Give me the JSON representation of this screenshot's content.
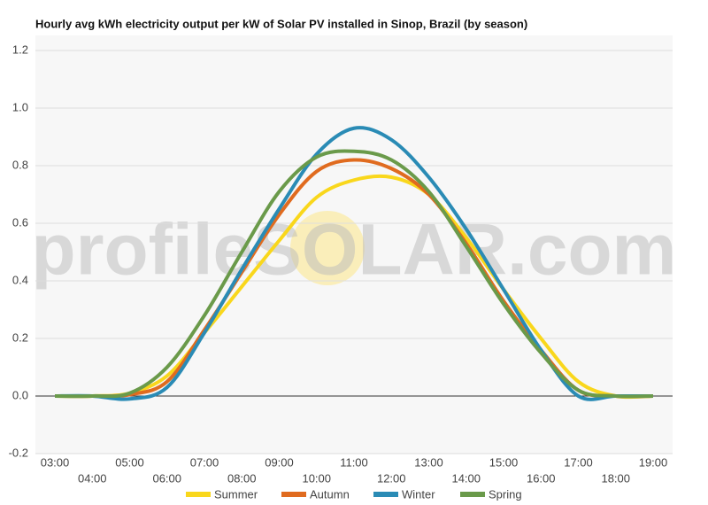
{
  "chart_data": {
    "type": "line",
    "title": "Hourly avg kWh electricity output per kW of Solar PV installed in Sinop, Brazil (by season)",
    "watermark": "profileSOLAR.com",
    "categories": [
      "03:00",
      "04:00",
      "05:00",
      "06:00",
      "07:00",
      "08:00",
      "09:00",
      "10:00",
      "11:00",
      "12:00",
      "13:00",
      "14:00",
      "15:00",
      "16:00",
      "17:00",
      "18:00",
      "19:00"
    ],
    "series": [
      {
        "name": "Summer",
        "color": "#f9d71c",
        "values": [
          0,
          0,
          0.01,
          0.07,
          0.22,
          0.38,
          0.54,
          0.69,
          0.75,
          0.76,
          0.7,
          0.55,
          0.37,
          0.2,
          0.05,
          0,
          0
        ]
      },
      {
        "name": "Autumn",
        "color": "#e06b1f",
        "values": [
          0,
          0,
          0.005,
          0.05,
          0.23,
          0.43,
          0.63,
          0.78,
          0.82,
          0.79,
          0.7,
          0.53,
          0.33,
          0.16,
          0.02,
          0,
          0
        ]
      },
      {
        "name": "Winter",
        "color": "#2a8bb5",
        "values": [
          0,
          0,
          -0.01,
          0.03,
          0.22,
          0.44,
          0.65,
          0.84,
          0.93,
          0.89,
          0.76,
          0.58,
          0.37,
          0.16,
          0,
          0,
          0
        ]
      },
      {
        "name": "Spring",
        "color": "#6a9a4a",
        "values": [
          0,
          0,
          0.01,
          0.1,
          0.28,
          0.5,
          0.71,
          0.83,
          0.85,
          0.82,
          0.71,
          0.52,
          0.32,
          0.15,
          0.02,
          0,
          0
        ]
      }
    ],
    "ylim": [
      -0.2,
      1.2
    ],
    "yticks": [
      -0.2,
      {
        "value": 0,
        "label": "0.0"
      },
      0.2,
      0.4,
      0.6,
      0.8,
      {
        "value": 1,
        "label": "1.0"
      },
      1.2
    ],
    "grid": true
  }
}
